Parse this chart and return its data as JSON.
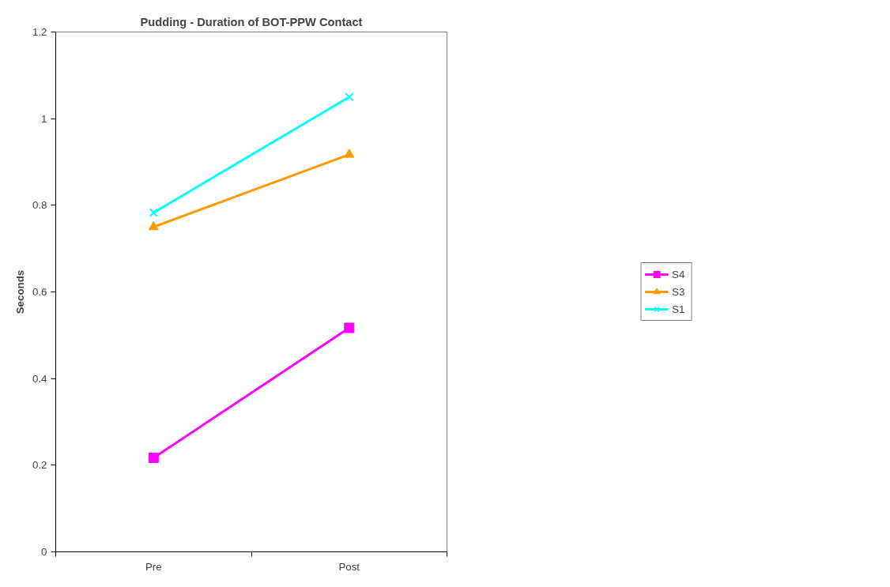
{
  "chart_data": {
    "type": "line",
    "title": "Pudding - Duration of BOT-PPW Contact",
    "ylabel": "Seconds",
    "categories": [
      "Pre",
      "Post"
    ],
    "series": [
      {
        "name": "S4",
        "color": "#ff00ff",
        "marker": "square",
        "values": [
          0.217,
          0.517
        ]
      },
      {
        "name": "S3",
        "color": "#ff9900",
        "marker": "triangle",
        "values": [
          0.75,
          0.917
        ]
      },
      {
        "name": "S1",
        "color": "#00ffff",
        "marker": "cross",
        "values": [
          0.783,
          1.05
        ]
      }
    ],
    "ylim": [
      0,
      1.2
    ],
    "yticks": [
      0,
      0.2,
      0.4,
      0.6,
      0.8,
      1,
      1.2
    ],
    "legend": "right",
    "grid": false,
    "line_style": "solid"
  }
}
